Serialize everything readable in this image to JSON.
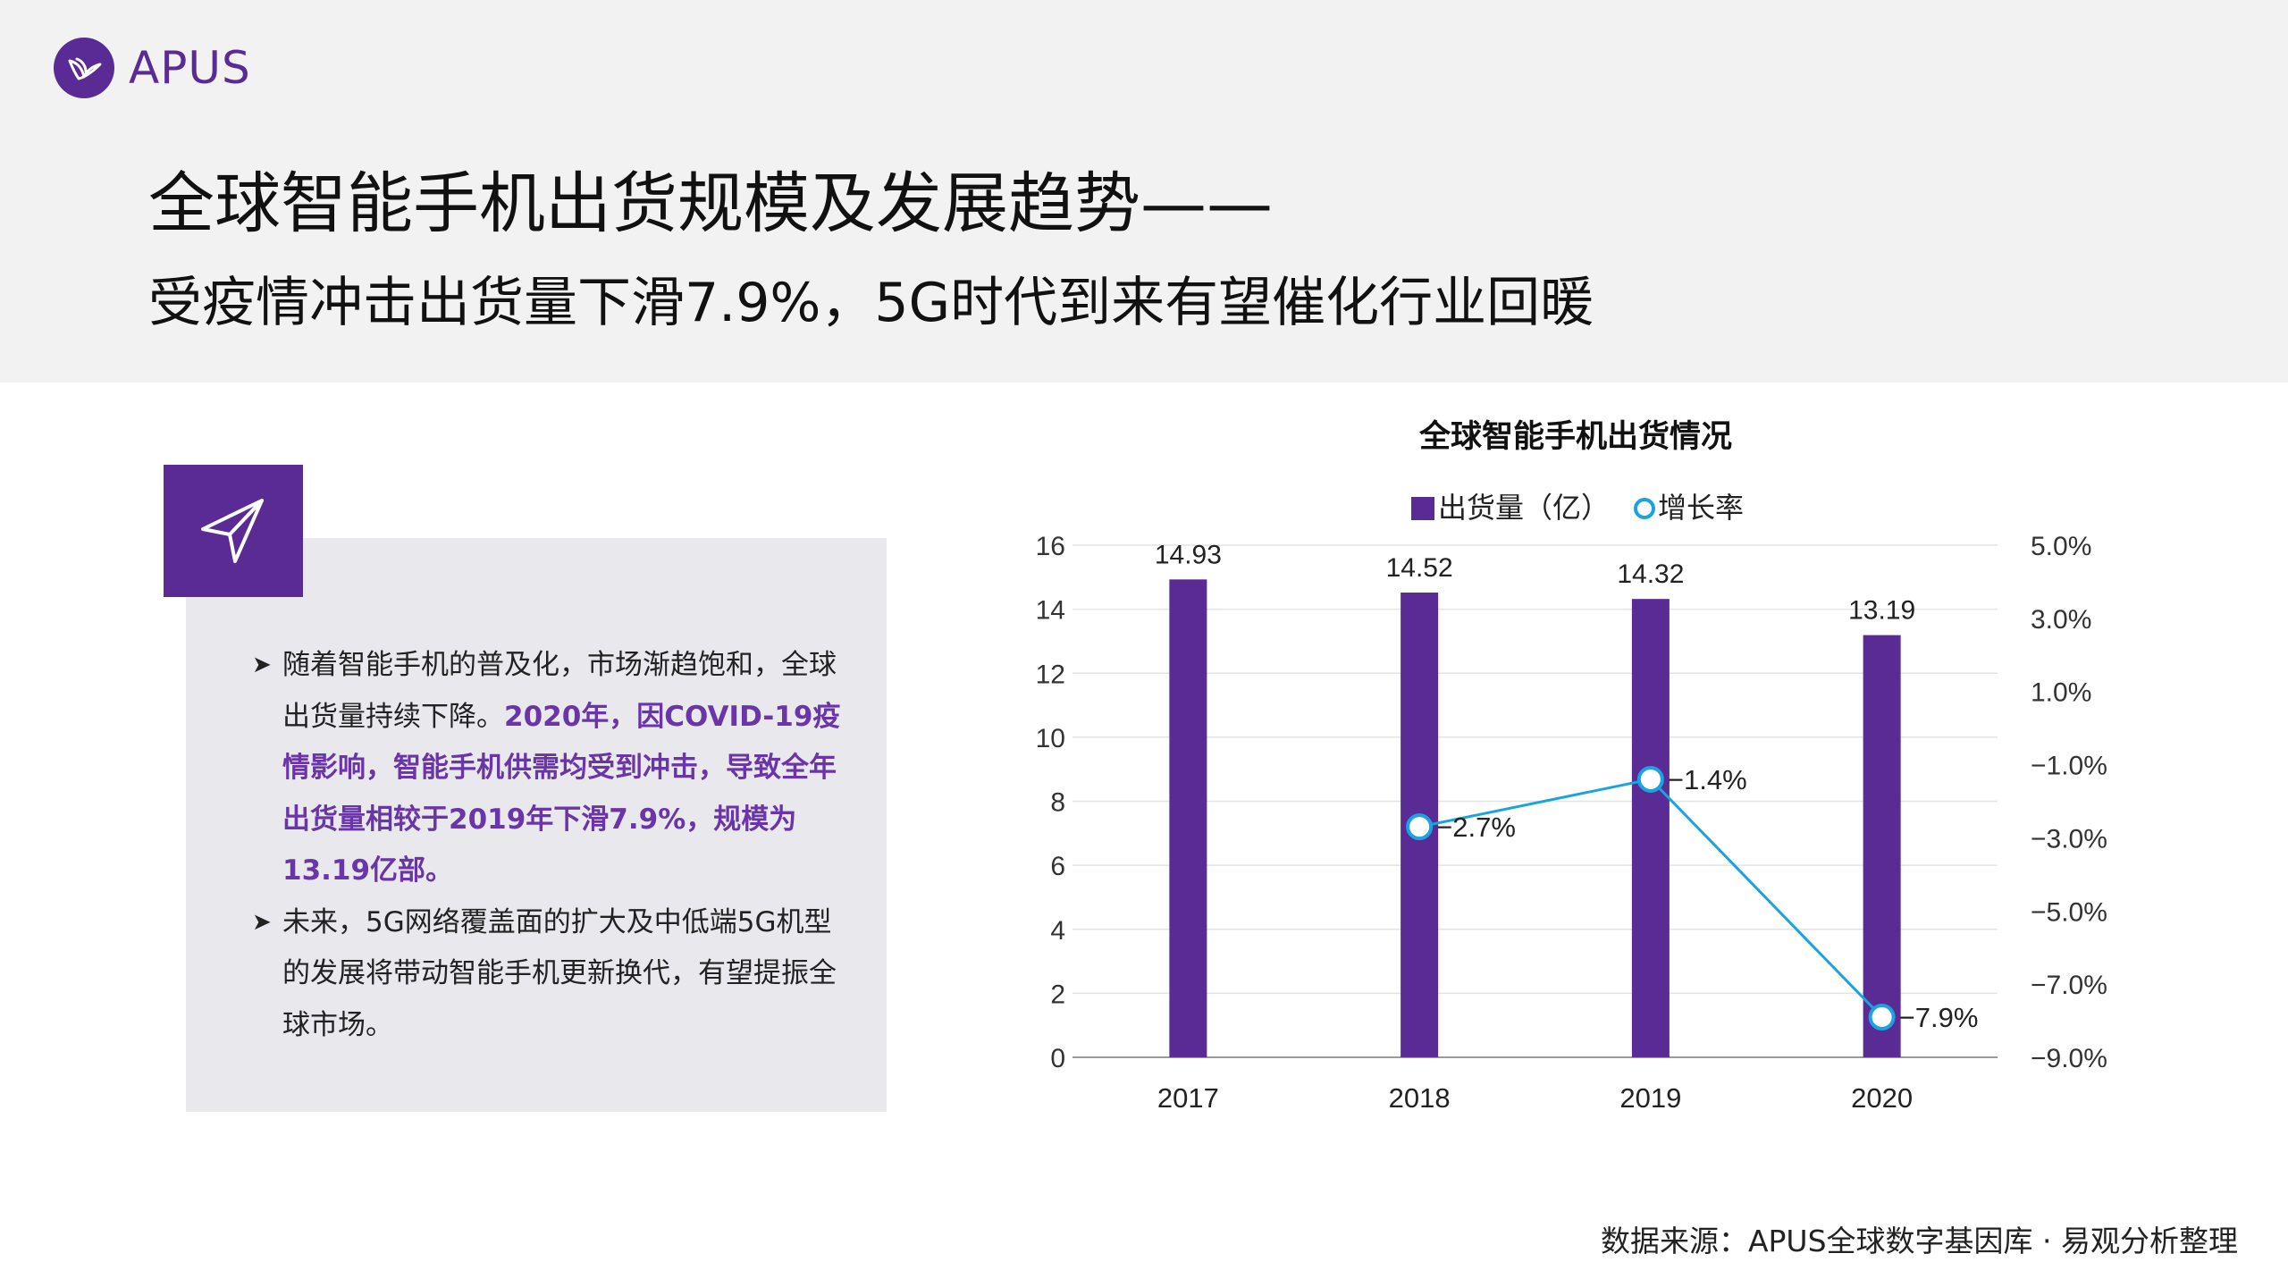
{
  "header": {
    "brand": "APUS",
    "title": "全球智能手机出货规模及发展趋势——",
    "subtitle": "受疫情冲击出货量下滑7.9%，5G时代到来有望催化行业回暖"
  },
  "panel": {
    "bullets": [
      {
        "text_plain": "随着智能手机的普及化，市场渐趋饱和，全球出货量持续下降。",
        "text_highlight": "2020年，因COVID-19疫情影响，智能手机供需均受到冲击，导致全年出货量相较于2019年下滑7.9%，规模为13.19亿部。"
      },
      {
        "text_plain": "未来，5G网络覆盖面的扩大及中低端5G机型的发展将带动智能手机更新换代，有望提振全球市场。",
        "text_highlight": ""
      }
    ]
  },
  "source": "数据来源：APUS全球数字基因库 · 易观分析整理",
  "colors": {
    "brand": "#5a2b95",
    "bar": "#5a2b95",
    "line": "#1aa3e0",
    "highlight_text": "#6a35a8"
  },
  "chart_data": {
    "type": "bar",
    "title": "全球智能手机出货情况",
    "categories": [
      "2017",
      "2018",
      "2019",
      "2020"
    ],
    "series": [
      {
        "name": "出货量（亿）",
        "type": "bar",
        "axis": "left",
        "values": [
          14.93,
          14.52,
          14.32,
          13.19
        ],
        "labels": [
          "14.93",
          "14.52",
          "14.32",
          "13.19"
        ]
      },
      {
        "name": "增长率",
        "type": "line",
        "axis": "right",
        "values": [
          null,
          -2.7,
          -1.4,
          -7.9
        ],
        "labels": [
          "",
          "−2.7%",
          "−1.4%",
          "−7.9%"
        ]
      }
    ],
    "y_left": {
      "min": 0,
      "max": 16,
      "ticks": [
        "0",
        "2",
        "4",
        "6",
        "8",
        "10",
        "12",
        "14",
        "16"
      ]
    },
    "y_right": {
      "min": -9.0,
      "max": 5.0,
      "ticks": [
        "5.0%",
        "3.0%",
        "1.0%",
        "−1.0%",
        "−3.0%",
        "−5.0%",
        "−7.0%",
        "−9.0%"
      ]
    },
    "grid": true,
    "legend_position": "top"
  }
}
